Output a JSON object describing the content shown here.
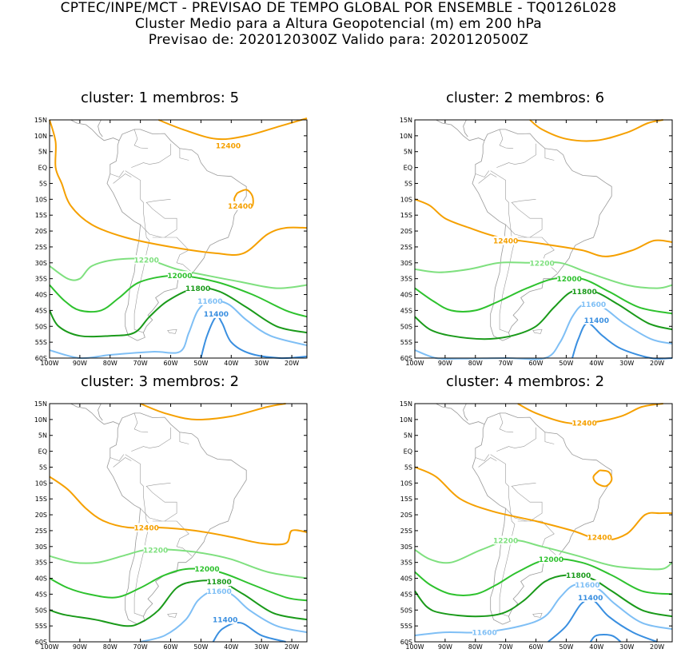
{
  "header": {
    "line1": "CPTEC/INPE/MCT - PREVISAO DE TEMPO GLOBAL POR ENSEMBLE - TQ0126L028",
    "line2": "Cluster Medio para a Altura Geopotencial (m) em 200 hPa",
    "line3": "Previsao de: 2020120300Z   Valido para: 2020120500Z"
  },
  "axis": {
    "lat_labels": [
      "15N",
      "10N",
      "5N",
      "EQ",
      "5S",
      "10S",
      "15S",
      "20S",
      "25S",
      "30S",
      "35S",
      "40S",
      "45S",
      "50S",
      "55S",
      "60S"
    ],
    "lon_labels": [
      "100W",
      "90W",
      "80W",
      "70W",
      "60W",
      "50W",
      "40W",
      "30W",
      "20W"
    ]
  },
  "colors": {
    "c12400": "#f5a000",
    "c12200": "#7fe07f",
    "c12000": "#2ec22e",
    "c11800": "#1a9a1a",
    "c11600": "#7fbff5",
    "c11400": "#3a8fe0",
    "coast": "#999999"
  },
  "panels": [
    {
      "title": "cluster: 1   membros: 5",
      "labels": [
        {
          "text": "12400",
          "lon": -41,
          "lat": 7,
          "color": "c12400"
        },
        {
          "text": "12400",
          "lon": -37,
          "lat": -12,
          "color": "c12400"
        },
        {
          "text": "12200",
          "lon": -68,
          "lat": -29,
          "color": "c12200"
        },
        {
          "text": "12000",
          "lon": -57,
          "lat": -34,
          "color": "c12000"
        },
        {
          "text": "11800",
          "lon": -51,
          "lat": -38,
          "color": "c11800"
        },
        {
          "text": "11600",
          "lon": -47,
          "lat": -42,
          "color": "c11600"
        },
        {
          "text": "11400",
          "lon": -45,
          "lat": -46,
          "color": "c11400"
        }
      ]
    },
    {
      "title": "cluster: 2   membros: 6",
      "labels": [
        {
          "text": "12400",
          "lon": -70,
          "lat": -23,
          "color": "c12400"
        },
        {
          "text": "12200",
          "lon": -58,
          "lat": -30,
          "color": "c12200"
        },
        {
          "text": "12000",
          "lon": -49,
          "lat": -35,
          "color": "c12000"
        },
        {
          "text": "11800",
          "lon": -44,
          "lat": -39,
          "color": "c11800"
        },
        {
          "text": "11600",
          "lon": -41,
          "lat": -43,
          "color": "c11600"
        },
        {
          "text": "11400",
          "lon": -40,
          "lat": -48,
          "color": "c11400"
        }
      ]
    },
    {
      "title": "cluster: 3   membros: 2",
      "labels": [
        {
          "text": "12400",
          "lon": -68,
          "lat": -24,
          "color": "c12400"
        },
        {
          "text": "12200",
          "lon": -65,
          "lat": -31,
          "color": "c12200"
        },
        {
          "text": "12000",
          "lon": -48,
          "lat": -37,
          "color": "c12000"
        },
        {
          "text": "11800",
          "lon": -44,
          "lat": -41,
          "color": "c11800"
        },
        {
          "text": "11600",
          "lon": -44,
          "lat": -44,
          "color": "c11600"
        },
        {
          "text": "11400",
          "lon": -42,
          "lat": -53,
          "color": "c11400"
        }
      ]
    },
    {
      "title": "cluster: 4   membros: 2",
      "labels": [
        {
          "text": "12400",
          "lon": -44,
          "lat": 9,
          "color": "c12400"
        },
        {
          "text": "12400",
          "lon": -39,
          "lat": -27,
          "color": "c12400"
        },
        {
          "text": "12200",
          "lon": -70,
          "lat": -28,
          "color": "c12200"
        },
        {
          "text": "12000",
          "lon": -55,
          "lat": -34,
          "color": "c12000"
        },
        {
          "text": "11800",
          "lon": -46,
          "lat": -39,
          "color": "c11800"
        },
        {
          "text": "11600",
          "lon": -43,
          "lat": -42,
          "color": "c11600"
        },
        {
          "text": "11400",
          "lon": -42,
          "lat": -46,
          "color": "c11400"
        },
        {
          "text": "11600",
          "lon": -77,
          "lat": -57,
          "color": "c11600"
        }
      ]
    }
  ]
}
